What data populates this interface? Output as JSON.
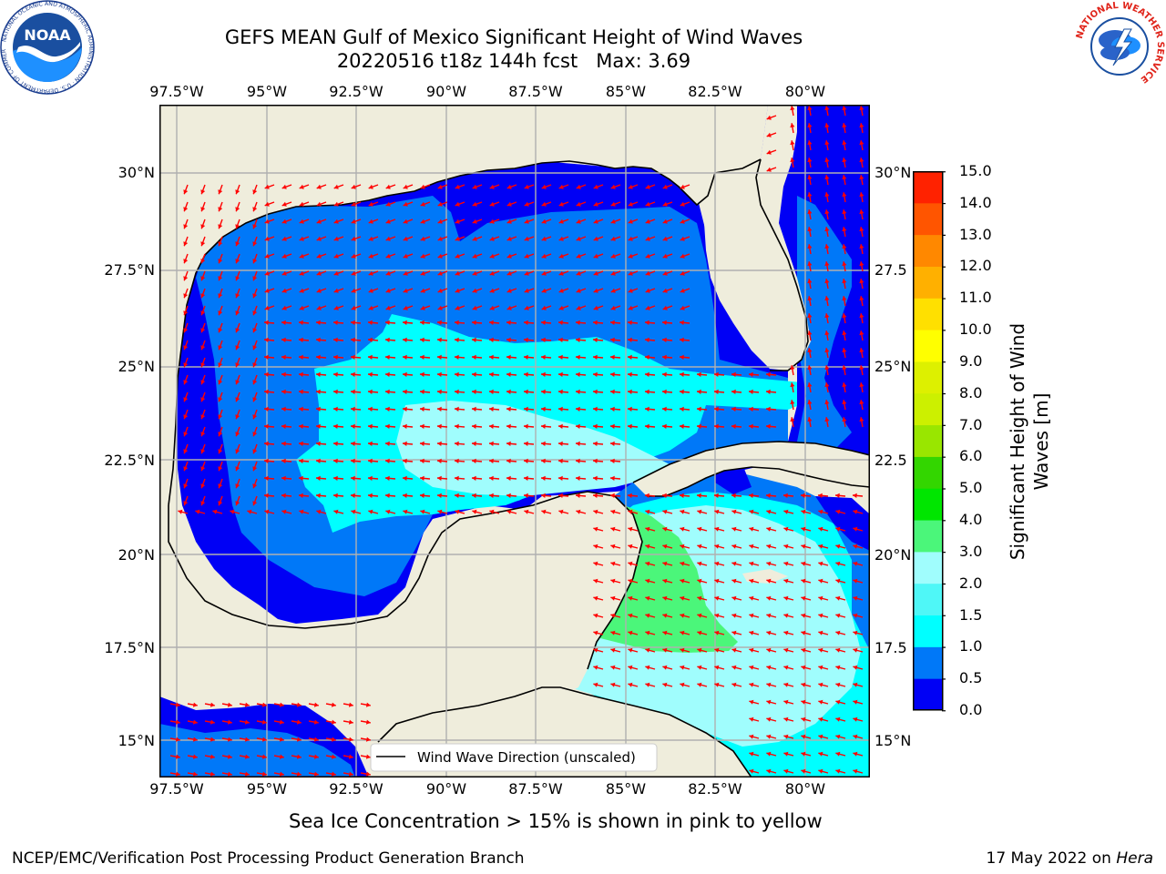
{
  "title": {
    "line1": "GEFS MEAN Gulf of Mexico Significant Height of Wind Waves",
    "line2": "20220516 t18z 144h fcst   Max: 3.69"
  },
  "logos": {
    "noaa_text": "NOAA",
    "noaa_ring": "NATIONAL OCEANIC AND ATMOSPHERIC ADMINISTRATION · U.S. DEPARTMENT OF COMMERCE",
    "nws_ring": "NATIONAL WEATHER SERVICE"
  },
  "map": {
    "lon_labels": [
      "97.5°W",
      "95°W",
      "92.5°W",
      "90°W",
      "87.5°W",
      "85°W",
      "82.5°W",
      "80°W"
    ],
    "lat_labels_left": [
      "30°N",
      "27.5°N",
      "25°N",
      "22.5°N",
      "20°N",
      "17.5°N",
      "15°N"
    ],
    "lat_labels_right": [
      "30°N",
      "27.5",
      "25°N",
      "22.5",
      "20°N",
      "17.5",
      "15°N"
    ],
    "legend_label": "Wind Wave Direction (unscaled)",
    "colors": {
      "land": "#efeddc",
      "ocean_dark": "#0000f5",
      "ocean_mid": "#0078f8",
      "ocean_light": "#00ffff",
      "ocean_pale": "#a0fdfd",
      "ocean_green": "#4bf67a",
      "arrow": "#ff0000",
      "grid": "#b0b0b0"
    }
  },
  "colorbar": {
    "title": "Significant Height of Wind Waves [m]",
    "levels": [
      "0.0",
      "0.5",
      "1.0",
      "1.5",
      "2.0",
      "3.0",
      "4.0",
      "5.0",
      "6.0",
      "7.0",
      "8.0",
      "9.0",
      "10.0",
      "11.0",
      "12.0",
      "13.0",
      "14.0",
      "15.0"
    ],
    "colors": [
      "#0000f5",
      "#0078f8",
      "#00ffff",
      "#4ff7f7",
      "#a0fdfd",
      "#4bf67a",
      "#00e600",
      "#33d600",
      "#99e600",
      "#ccf000",
      "#ddf000",
      "#ffff00",
      "#ffe000",
      "#ffb000",
      "#ff8800",
      "#ff5500",
      "#ff2200"
    ]
  },
  "caption": "Sea Ice Concentration > 15% is shown in pink to yellow",
  "footer": {
    "left": "NCEP/EMC/Verification Post Processing Product Generation Branch",
    "right_prefix": "17 May 2022 on ",
    "right_host": "Hera"
  }
}
